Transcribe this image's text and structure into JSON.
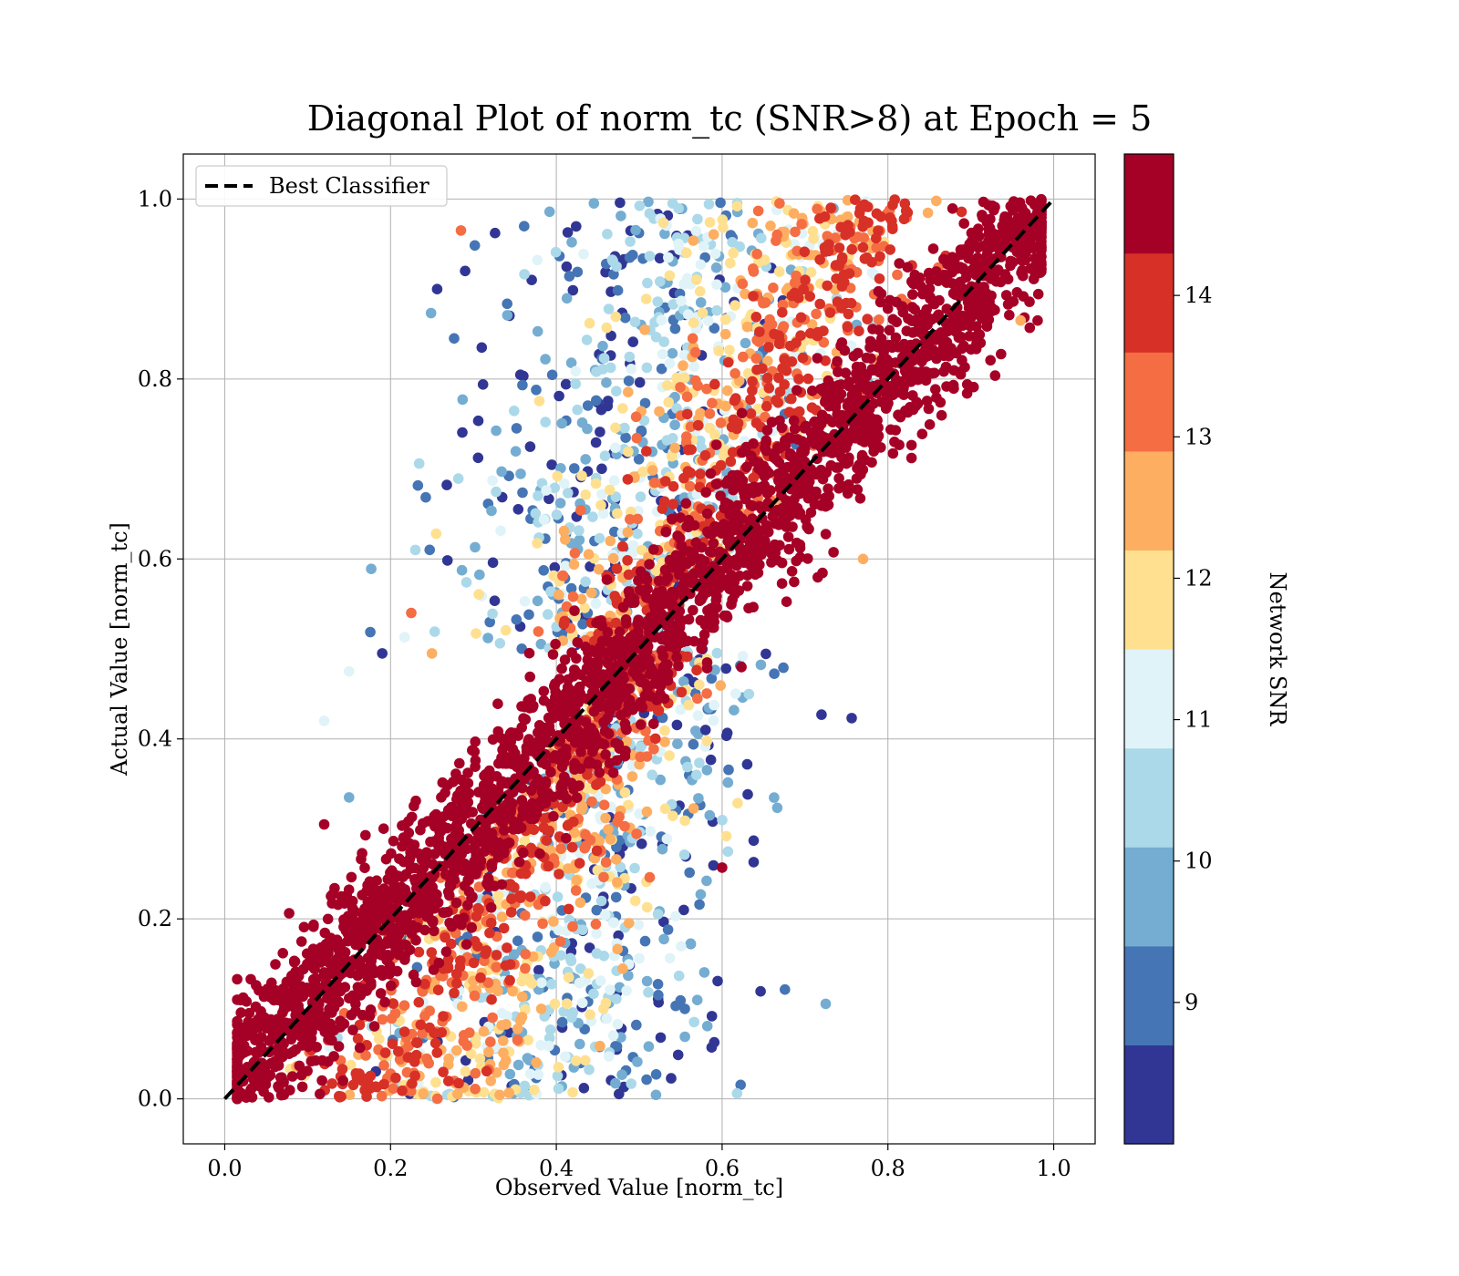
{
  "chart_data": {
    "type": "scatter",
    "title": "Diagonal Plot of norm_tc (SNR>8) at Epoch = 5",
    "xlabel": "Observed Value [norm_tc]",
    "ylabel": "Actual Value [norm_tc]",
    "xlim": [
      -0.05,
      1.05
    ],
    "ylim": [
      -0.05,
      1.05
    ],
    "xticks": [
      0.0,
      0.2,
      0.4,
      0.6,
      0.8,
      1.0
    ],
    "yticks": [
      0.0,
      0.2,
      0.4,
      0.6,
      0.8,
      1.0
    ],
    "xtick_labels": [
      "0.0",
      "0.2",
      "0.4",
      "0.6",
      "0.8",
      "1.0"
    ],
    "ytick_labels": [
      "0.0",
      "0.2",
      "0.4",
      "0.6",
      "0.8",
      "1.0"
    ],
    "grid": true,
    "legend": {
      "location": "upper-left",
      "entries": [
        {
          "label": "Best Classifier",
          "style": "dashed",
          "color": "#000000"
        }
      ]
    },
    "reference_line": {
      "x": [
        0.0,
        1.0
      ],
      "y": [
        0.0,
        1.0
      ],
      "color": "#000000",
      "style": "dashed"
    },
    "colorbar": {
      "label": "Network SNR",
      "range": [
        8,
        15
      ],
      "ticks": [
        9,
        10,
        11,
        12,
        13,
        14
      ],
      "tick_labels": [
        "9",
        "10",
        "11",
        "12",
        "13",
        "14"
      ],
      "bins": [
        {
          "from": 8.0,
          "to": 8.7,
          "color": "#313695"
        },
        {
          "from": 8.7,
          "to": 9.4,
          "color": "#4575b4"
        },
        {
          "from": 9.4,
          "to": 10.1,
          "color": "#74add1"
        },
        {
          "from": 10.1,
          "to": 10.8,
          "color": "#abd9e9"
        },
        {
          "from": 10.8,
          "to": 11.5,
          "color": "#e0f3f8"
        },
        {
          "from": 11.5,
          "to": 12.2,
          "color": "#fee090"
        },
        {
          "from": 12.2,
          "to": 12.9,
          "color": "#fdae61"
        },
        {
          "from": 12.9,
          "to": 13.6,
          "color": "#f46d43"
        },
        {
          "from": 13.6,
          "to": 14.3,
          "color": "#d73027"
        },
        {
          "from": 14.3,
          "to": 15.0,
          "color": "#a50026"
        }
      ]
    },
    "point_cloud": {
      "description_of_distribution": "dense high-SNR band around y=x; low-SNR points spread horizontally toward x≈0.4–0.5",
      "bands": [
        {
          "snr": 14.7,
          "count": 2600,
          "spread": 0.045
        },
        {
          "snr": 14.0,
          "count": 500,
          "spread": 0.07
        },
        {
          "snr": 13.2,
          "count": 380,
          "spread": 0.1
        },
        {
          "snr": 12.6,
          "count": 330,
          "spread": 0.12
        },
        {
          "snr": 11.9,
          "count": 300,
          "spread": 0.14
        },
        {
          "snr": 11.1,
          "count": 260,
          "spread": 0.15
        },
        {
          "snr": 10.4,
          "count": 280,
          "spread": 0.16
        },
        {
          "snr": 9.7,
          "count": 230,
          "spread": 0.17
        },
        {
          "snr": 9.0,
          "count": 200,
          "spread": 0.18
        },
        {
          "snr": 8.3,
          "count": 220,
          "spread": 0.19
        }
      ],
      "outliers": [
        {
          "x": 0.12,
          "y": 0.305,
          "snr": 14.7
        },
        {
          "x": 0.19,
          "y": 0.495,
          "snr": 8.3
        },
        {
          "x": 0.15,
          "y": 0.335,
          "snr": 9.7
        },
        {
          "x": 0.15,
          "y": 0.475,
          "snr": 11.1
        },
        {
          "x": 0.12,
          "y": 0.42,
          "snr": 11.1
        },
        {
          "x": 0.225,
          "y": 0.54,
          "snr": 13.2
        },
        {
          "x": 0.25,
          "y": 0.495,
          "snr": 12.6
        },
        {
          "x": 0.23,
          "y": 0.61,
          "snr": 10.4
        },
        {
          "x": 0.255,
          "y": 0.628,
          "snr": 11.9
        },
        {
          "x": 0.29,
          "y": 0.92,
          "snr": 8.3
        },
        {
          "x": 0.285,
          "y": 0.965,
          "snr": 13.2
        },
        {
          "x": 0.31,
          "y": 0.835,
          "snr": 8.3
        },
        {
          "x": 0.555,
          "y": 0.1,
          "snr": 9.0
        },
        {
          "x": 0.585,
          "y": 0.315,
          "snr": 9.7
        },
        {
          "x": 0.6,
          "y": 0.257,
          "snr": 14.7
        },
        {
          "x": 0.605,
          "y": 0.292,
          "snr": 11.9
        },
        {
          "x": 0.638,
          "y": 0.287,
          "snr": 8.3
        },
        {
          "x": 0.618,
          "y": 0.006,
          "snr": 10.4
        },
        {
          "x": 0.58,
          "y": 0.41,
          "snr": 8.3
        },
        {
          "x": 0.77,
          "y": 0.6,
          "snr": 12.6
        },
        {
          "x": 0.96,
          "y": 0.865,
          "snr": 12.6
        }
      ]
    }
  }
}
